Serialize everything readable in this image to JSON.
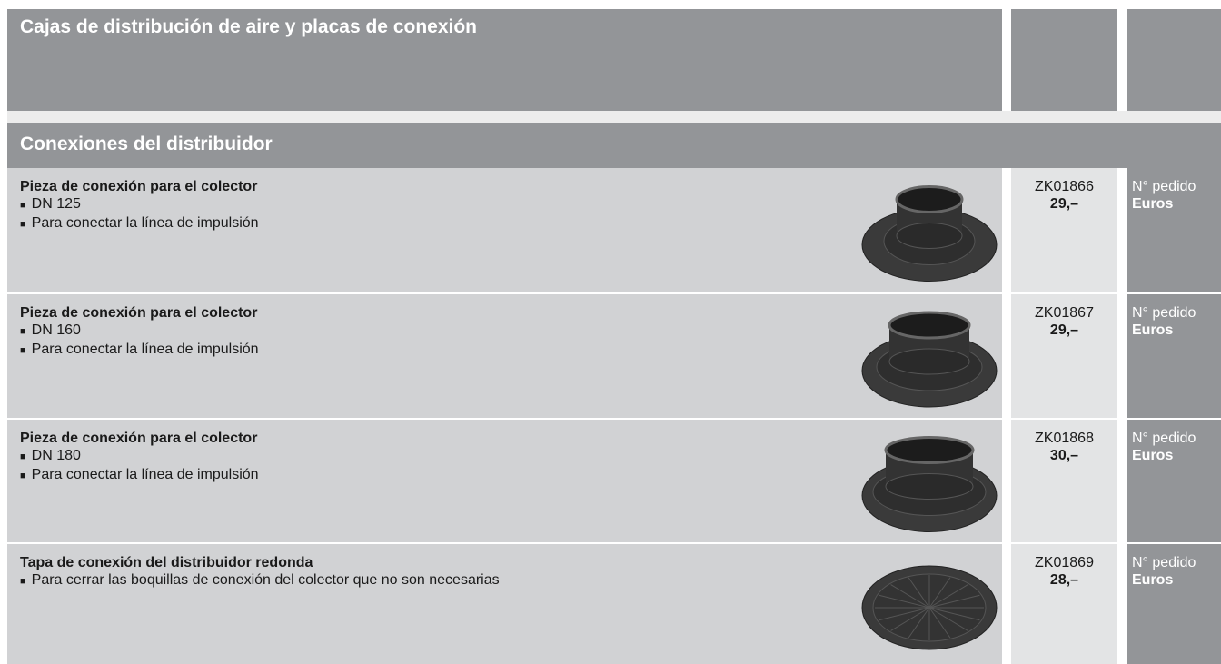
{
  "header": {
    "title": "Cajas de distribución de aire y placas de conexión"
  },
  "section": {
    "title": "Conexiones del distribuidor"
  },
  "rows": [
    {
      "title": "Pieza de conexión para el colector",
      "bullets": [
        "DN 125",
        "Para conectar la línea de impulsión"
      ],
      "code": "ZK01866",
      "price": "29,–",
      "order_label": "N° pedido",
      "currency_label": "Euros"
    },
    {
      "title": "Pieza de conexión para el colector",
      "bullets": [
        "DN 160",
        "Para conectar la línea de impulsión"
      ],
      "code": "ZK01867",
      "price": "29,–",
      "order_label": "N° pedido",
      "currency_label": "Euros"
    },
    {
      "title": "Pieza de conexión para el colector",
      "bullets": [
        "DN 180",
        "Para conectar la línea de impulsión"
      ],
      "code": "ZK01868",
      "price": "30,–",
      "order_label": "N° pedido",
      "currency_label": "Euros"
    },
    {
      "title": "Tapa de conexión del distribuidor redonda",
      "bullets": [
        "Para cerrar las boquillas de conexión del colector que no son necesarias"
      ],
      "code": "ZK01869",
      "price": "28,–",
      "order_label": "N° pedido",
      "currency_label": "Euros"
    }
  ]
}
